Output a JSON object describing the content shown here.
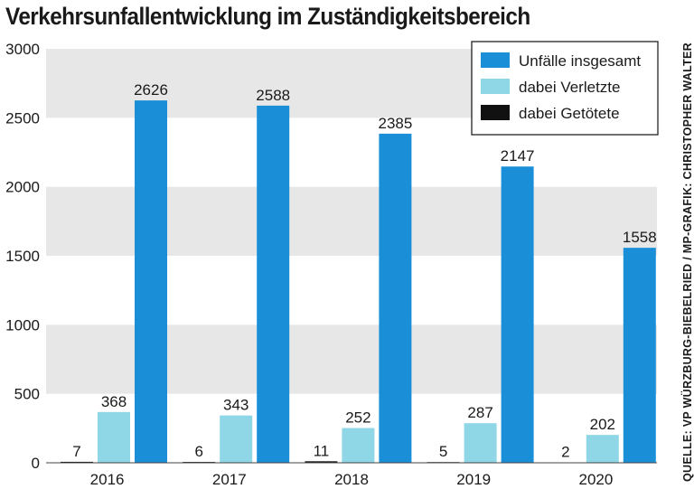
{
  "colors": {
    "total": "#1a8fd8",
    "injured": "#8fd6e6",
    "fatal": "#111111",
    "band": "#e7e7e7",
    "text": "#1a1a1a"
  },
  "chart_data": {
    "type": "bar",
    "title": "Verkehrsunfallentwicklung im Zuständigkeitsbereich",
    "source": "QUELLE: VP WÜRZBURG-BIEBELRIED / MP-GRAFIK: CHRISTOPHER WALTER",
    "xlabel": "",
    "ylabel": "",
    "ylim": [
      0,
      3000
    ],
    "yticks": [
      "0",
      "500",
      "1000",
      "1500",
      "2000",
      "2500",
      "3000"
    ],
    "grid": "alternating horizontal bands",
    "legend_position": "top-right",
    "categories": [
      "2016",
      "2017",
      "2018",
      "2019",
      "2020"
    ],
    "series": [
      {
        "name": "dabei Getötete",
        "key": "fatal",
        "values": [
          7,
          6,
          11,
          5,
          2
        ]
      },
      {
        "name": "dabei Verletzte",
        "key": "injured",
        "values": [
          368,
          343,
          252,
          287,
          202
        ]
      },
      {
        "name": "Unfälle insgesamt",
        "key": "total",
        "values": [
          2626,
          2588,
          2385,
          2147,
          1558
        ]
      }
    ],
    "legend": [
      {
        "key": "total",
        "label": "Unfälle insgesamt"
      },
      {
        "key": "injured",
        "label": "dabei Verletzte"
      },
      {
        "key": "fatal",
        "label": "dabei Getötete"
      }
    ]
  }
}
